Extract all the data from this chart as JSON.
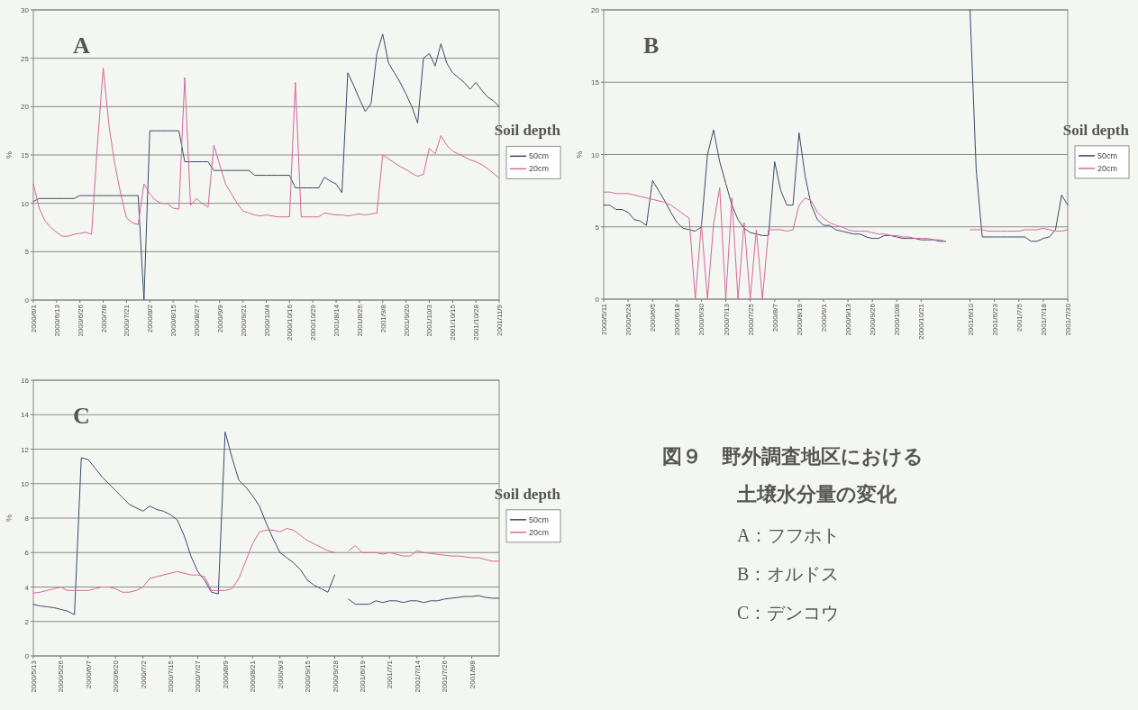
{
  "chart_data": [
    {
      "type": "line",
      "title": "A",
      "ylabel": "%",
      "legend_title": "Soil depth",
      "grid": "y",
      "legend": "right",
      "ylim": [
        0,
        30
      ],
      "yticks": [
        0,
        5,
        10,
        15,
        20,
        25,
        30
      ],
      "categories": [
        "2000/6/1",
        null,
        null,
        null,
        "2000/6/13",
        null,
        null,
        null,
        "2000/6/26",
        null,
        null,
        null,
        "2000/7/8",
        null,
        null,
        null,
        "2000/7/21",
        null,
        null,
        null,
        "2000/8/2",
        null,
        null,
        null,
        "2000/8/15",
        null,
        null,
        null,
        "2000/8/27",
        null,
        null,
        null,
        "2000/9/9",
        null,
        null,
        null,
        "2000/9/21",
        null,
        null,
        null,
        "2000/10/4",
        null,
        null,
        null,
        "2000/10/16",
        null,
        null,
        null,
        "2000/10/29",
        null,
        null,
        null,
        "2001/8/14",
        null,
        null,
        null,
        "2001/8/26",
        null,
        null,
        null,
        "2001/9/8",
        null,
        null,
        null,
        "2001/9/20",
        null,
        null,
        null,
        "2001/10/3",
        null,
        null,
        null,
        "2001/10/15",
        null,
        null,
        null,
        "2001/10/28",
        null,
        null,
        null,
        "2001/11/9"
      ],
      "series": [
        {
          "name": "50cm",
          "color": "#3d4a6e",
          "values": [
            10.2,
            10.5,
            10.5,
            10.5,
            10.5,
            10.5,
            10.5,
            10.5,
            10.8,
            10.8,
            10.8,
            10.8,
            10.8,
            10.8,
            10.8,
            10.8,
            10.8,
            10.8,
            10.8,
            0,
            17.5,
            17.5,
            17.5,
            17.5,
            17.5,
            17.5,
            14.3,
            14.3,
            14.3,
            14.3,
            14.3,
            13.4,
            13.4,
            13.4,
            13.4,
            13.4,
            13.4,
            13.4,
            12.9,
            12.9,
            12.9,
            12.9,
            12.9,
            12.9,
            12.9,
            11.6,
            11.6,
            11.6,
            11.6,
            11.6,
            12.7,
            12.3,
            12.0,
            11.1,
            23.5,
            22.2,
            20.8,
            19.5,
            20.3,
            25.5,
            27.5,
            24.5,
            23.5,
            22.5,
            21.3,
            20.0,
            18.3,
            25.0,
            25.5,
            24.2,
            26.5,
            24.5,
            23.5,
            23.0,
            22.5,
            21.8,
            22.5,
            21.7,
            21.0,
            20.6,
            20.0
          ]
        },
        {
          "name": "20cm",
          "color": "#d4689c",
          "values": [
            12,
            9.5,
            8.2,
            7.5,
            7.0,
            6.6,
            6.6,
            6.8,
            6.9,
            7.0,
            6.8,
            16,
            24,
            18,
            14,
            11,
            8.5,
            8.0,
            7.8,
            12,
            11,
            10.3,
            10.0,
            10.0,
            9.5,
            9.4,
            23,
            9.8,
            10.5,
            10,
            9.6,
            16,
            14,
            12,
            11,
            10,
            9.2,
            9,
            8.8,
            8.7,
            8.8,
            8.7,
            8.6,
            8.6,
            8.6,
            22.5,
            8.6,
            8.6,
            8.6,
            8.6,
            9.0,
            8.9,
            8.8,
            8.8,
            8.7,
            8.8,
            8.9,
            8.8,
            8.9,
            9.0,
            15.0,
            14.6,
            14.2,
            13.8,
            13.5,
            13.1,
            12.8,
            13.0,
            15.7,
            15.1,
            17.0,
            16.0,
            15.4,
            15.1,
            14.8,
            14.5,
            14.3,
            14.0,
            13.6,
            13.1,
            12.6
          ]
        }
      ]
    },
    {
      "type": "line",
      "title": "B",
      "ylabel": "%",
      "legend_title": "Soil depth",
      "grid": "y",
      "legend": "right",
      "ylim": [
        0,
        20
      ],
      "yticks": [
        0,
        5,
        10,
        15,
        20
      ],
      "categories": [
        "2000/5/11",
        null,
        null,
        null,
        "2000/5/24",
        null,
        null,
        null,
        "2000/6/5",
        null,
        null,
        null,
        "2000/6/18",
        null,
        null,
        null,
        "2000/6/30",
        null,
        null,
        null,
        "2000/7/13",
        null,
        null,
        null,
        "2000/7/25",
        null,
        null,
        null,
        "2000/8/7",
        null,
        null,
        null,
        "2000/8/19",
        null,
        null,
        null,
        "2000/9/1",
        null,
        null,
        null,
        "2000/9/13",
        null,
        null,
        null,
        "2000/9/26",
        null,
        null,
        null,
        "2000/10/8",
        null,
        null,
        null,
        "2000/10/21",
        null,
        null,
        null,
        null,
        null,
        null,
        null,
        "2001/6/10",
        null,
        null,
        null,
        "2001/6/23",
        null,
        null,
        null,
        "2001/7/5",
        null,
        null,
        null,
        "2001/7/18",
        null,
        null,
        null,
        "2001/7/30"
      ],
      "series": [
        {
          "name": "50cm",
          "color": "#3d4a6e",
          "values": [
            6.5,
            6.5,
            6.2,
            6.2,
            6.0,
            5.5,
            5.4,
            5.1,
            8.2,
            7.5,
            6.8,
            6.0,
            5.3,
            4.9,
            4.8,
            4.7,
            5.0,
            10.0,
            11.7,
            9.5,
            8.0,
            6.5,
            5.5,
            4.9,
            4.6,
            4.5,
            4.4,
            4.4,
            9.5,
            7.5,
            6.5,
            6.5,
            11.5,
            8.5,
            6.5,
            5.5,
            5.1,
            5.1,
            4.8,
            4.7,
            4.6,
            4.5,
            4.5,
            4.3,
            4.2,
            4.2,
            4.4,
            4.4,
            4.3,
            4.2,
            4.2,
            4.2,
            4.1,
            4.1,
            4.1,
            4.0,
            4.0,
            null,
            null,
            null,
            20,
            9,
            4.3,
            4.3,
            4.3,
            4.3,
            4.3,
            4.3,
            4.3,
            4.3,
            4.0,
            4.0,
            4.2,
            4.3,
            4.8,
            7.2,
            6.5
          ]
        },
        {
          "name": "20cm",
          "color": "#d4689c",
          "values": [
            7.4,
            7.4,
            7.3,
            7.3,
            7.3,
            7.2,
            7.1,
            7.0,
            6.9,
            6.8,
            6.7,
            6.5,
            6.2,
            5.9,
            5.6,
            0,
            5.2,
            0,
            5.2,
            7.7,
            0,
            7.0,
            0,
            5.3,
            0,
            4.8,
            0,
            4.8,
            4.8,
            4.8,
            4.7,
            4.8,
            6.5,
            7.0,
            6.8,
            6.0,
            5.6,
            5.3,
            5.1,
            5.0,
            4.8,
            4.7,
            4.7,
            4.7,
            4.6,
            4.5,
            4.5,
            4.4,
            4.4,
            4.3,
            4.3,
            4.2,
            4.2,
            4.2,
            4.1,
            4.1,
            4.0,
            null,
            null,
            null,
            4.8,
            4.8,
            4.8,
            4.7,
            4.7,
            4.7,
            4.7,
            4.7,
            4.7,
            4.8,
            4.8,
            4.8,
            4.9,
            4.8,
            4.7,
            4.7,
            4.8
          ]
        }
      ]
    },
    {
      "type": "line",
      "title": "C",
      "ylabel": "%",
      "legend_title": "Soil depth",
      "grid": "y",
      "legend": "right",
      "ylim": [
        0,
        16
      ],
      "yticks": [
        0,
        2,
        4,
        6,
        8,
        10,
        12,
        14,
        16
      ],
      "categories": [
        "2000/5/13",
        null,
        null,
        null,
        "2000/5/26",
        null,
        null,
        null,
        "2000/6/7",
        null,
        null,
        null,
        "2000/6/20",
        null,
        null,
        null,
        "2000/7/2",
        null,
        null,
        null,
        "2000/7/15",
        null,
        null,
        null,
        "2000/7/27",
        null,
        null,
        null,
        "2000/8/9",
        null,
        null,
        null,
        "2000/8/21",
        null,
        null,
        null,
        "2000/9/3",
        null,
        null,
        null,
        "2000/9/15",
        null,
        null,
        null,
        "2000/9/28",
        null,
        null,
        null,
        "2001/6/19",
        null,
        null,
        null,
        "2001/7/1",
        null,
        null,
        null,
        "2001/7/14",
        null,
        null,
        null,
        "2001/7/26",
        null,
        null,
        null,
        "2001/8/8",
        null,
        null,
        null,
        null
      ],
      "series": [
        {
          "name": "50cm",
          "color": "#3d4a6e",
          "values": [
            3.0,
            2.9,
            2.85,
            2.8,
            2.7,
            2.6,
            2.4,
            11.5,
            11.4,
            10.9,
            10.4,
            10.0,
            9.6,
            9.2,
            8.8,
            8.6,
            8.4,
            8.7,
            8.5,
            8.4,
            8.2,
            7.9,
            7.0,
            5.8,
            4.9,
            4.4,
            3.7,
            3.6,
            13.0,
            11.5,
            10.2,
            9.8,
            9.3,
            8.7,
            7.7,
            6.8,
            6.0,
            5.7,
            5.4,
            5.0,
            4.4,
            4.1,
            3.9,
            3.7,
            4.7,
            null,
            3.3,
            3.0,
            3.0,
            3.0,
            3.2,
            3.1,
            3.2,
            3.2,
            3.1,
            3.2,
            3.2,
            3.1,
            3.2,
            3.2,
            3.3,
            3.35,
            3.4,
            3.45,
            3.45,
            3.5,
            3.4,
            3.35,
            3.35
          ]
        },
        {
          "name": "20cm",
          "color": "#d4689c",
          "values": [
            3.65,
            3.7,
            3.8,
            3.9,
            4.0,
            3.8,
            3.8,
            3.8,
            3.8,
            3.9,
            4.0,
            4.0,
            3.9,
            3.7,
            3.7,
            3.8,
            4.0,
            4.5,
            4.6,
            4.7,
            4.8,
            4.9,
            4.8,
            4.7,
            4.7,
            4.6,
            3.8,
            3.8,
            3.8,
            3.9,
            4.5,
            5.5,
            6.5,
            7.2,
            7.3,
            7.3,
            7.2,
            7.4,
            7.3,
            7.0,
            6.7,
            6.5,
            6.3,
            6.1,
            6.0,
            null,
            6.1,
            6.4,
            6.0,
            6.0,
            6.0,
            5.9,
            6.0,
            5.9,
            5.8,
            5.8,
            6.1,
            6.0,
            5.95,
            5.9,
            5.85,
            5.8,
            5.8,
            5.75,
            5.7,
            5.7,
            5.6,
            5.5,
            5.5
          ]
        }
      ]
    },
    {
      "type": "other",
      "title": "図９　野外調査地区における",
      "subtitle": "土壌水分量の変化",
      "annotations": [
        "A：フフホト",
        "B：オルドス",
        "C：デンコウ"
      ]
    }
  ]
}
